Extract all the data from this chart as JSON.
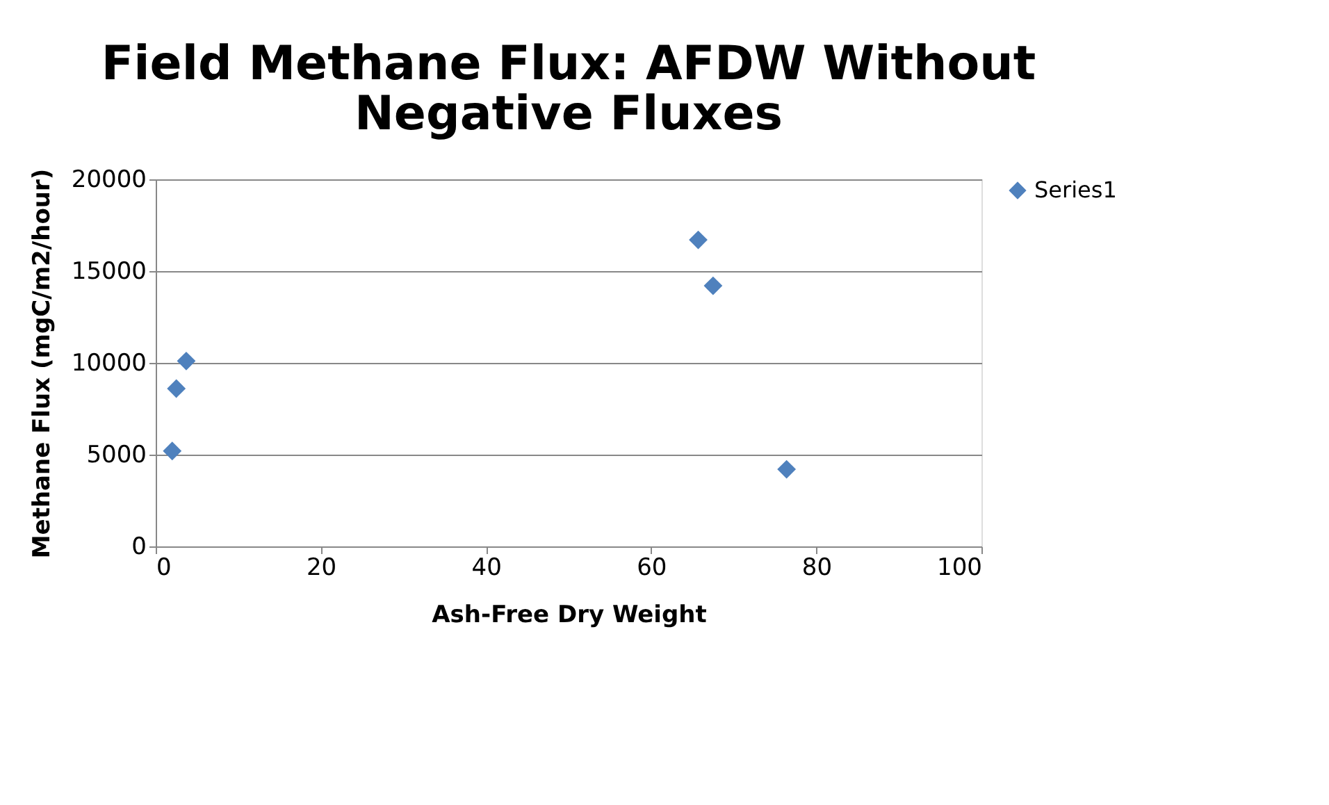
{
  "chart_data": {
    "type": "scatter",
    "title": "Field Methane Flux: AFDW Without Negative Fluxes",
    "xlabel": "Ash-Free Dry Weight",
    "ylabel": "Methane Flux (mgC/m2/hour)",
    "series": [
      {
        "name": "Series1",
        "color": "#4f81bd",
        "x": [
          2.0,
          2.5,
          3.7,
          65.7,
          67.5,
          76.4
        ],
        "values": [
          5200,
          8600,
          10100,
          16700,
          14200,
          4200
        ]
      }
    ],
    "xlim": [
      0,
      100
    ],
    "xticks": [
      0,
      20,
      40,
      60,
      80,
      100
    ],
    "ylim": [
      0,
      20000
    ],
    "yticks": [
      0,
      5000,
      10000,
      15000,
      20000
    ],
    "grid": "y",
    "legend": "right",
    "marker": "diamond"
  }
}
